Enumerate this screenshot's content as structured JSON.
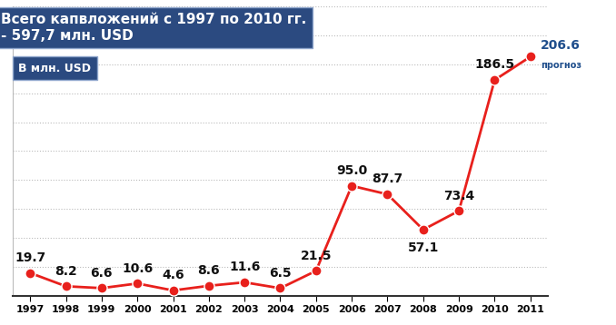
{
  "chart_data": {
    "type": "line",
    "title": "Всего капвложений с 1997 по 2010 гг. - 597,7 млн. USD",
    "subtitle": "В млн. USD",
    "categories": [
      "1997",
      "1998",
      "1999",
      "2000",
      "2001",
      "2002",
      "2003",
      "2004",
      "2005",
      "2006",
      "2007",
      "2008",
      "2009",
      "2010",
      "2011"
    ],
    "values": [
      19.7,
      8.2,
      6.6,
      10.6,
      4.6,
      8.6,
      11.6,
      6.5,
      21.5,
      95.0,
      87.7,
      57.1,
      73.4,
      186.5,
      206.6
    ],
    "value_labels": [
      "19.7",
      "8.2",
      "6.6",
      "10.6",
      "4.6",
      "8.6",
      "11.6",
      "6.5",
      "21.5",
      "95.0",
      "87.7",
      "57.1",
      "73.4",
      "186.5",
      "206.6"
    ],
    "color": "#e8201c",
    "marker": "o",
    "line_style": "solid",
    "data_labels": true,
    "tick_labels": "x",
    "grid": true,
    "ylim": [
      0,
      250
    ],
    "yticks": [
      0,
      25,
      50,
      75,
      100,
      125,
      150,
      175,
      200,
      225,
      250
    ],
    "annotations": [
      {
        "category": "2011",
        "text": "прогноз"
      }
    ]
  }
}
